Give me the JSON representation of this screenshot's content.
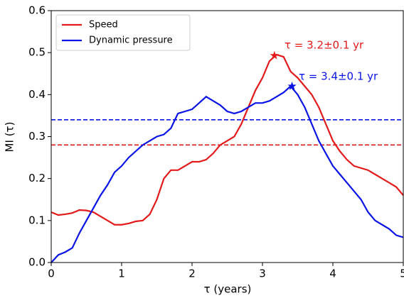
{
  "chart_data": {
    "type": "line",
    "xlabel": "τ (years)",
    "ylabel": "MI (τ)",
    "x": [
      0,
      0.1,
      0.2,
      0.3,
      0.4,
      0.5,
      0.6,
      0.7,
      0.8,
      0.9,
      1,
      1.1,
      1.2,
      1.3,
      1.4,
      1.5,
      1.6,
      1.7,
      1.8,
      1.9,
      2,
      2.1,
      2.2,
      2.3,
      2.4,
      2.5,
      2.6,
      2.7,
      2.8,
      2.9,
      3,
      3.1,
      3.2,
      3.3,
      3.4,
      3.5,
      3.6,
      3.7,
      3.8,
      3.9,
      4,
      4.1,
      4.2,
      4.3,
      4.4,
      4.5,
      4.6,
      4.7,
      4.8,
      4.9,
      5
    ],
    "series": [
      {
        "name": "Speed",
        "color": "#e31a1c",
        "values": [
          0.12,
          0.113,
          0.115,
          0.118,
          0.125,
          0.124,
          0.12,
          0.11,
          0.1,
          0.09,
          0.09,
          0.093,
          0.098,
          0.1,
          0.115,
          0.15,
          0.2,
          0.22,
          0.22,
          0.23,
          0.24,
          0.24,
          0.245,
          0.26,
          0.28,
          0.29,
          0.3,
          0.33,
          0.37,
          0.41,
          0.44,
          0.48,
          0.495,
          0.49,
          0.455,
          0.44,
          0.42,
          0.4,
          0.37,
          0.33,
          0.29,
          0.265,
          0.245,
          0.23,
          0.225,
          0.22,
          0.21,
          0.2,
          0.19,
          0.18,
          0.16
        ],
        "threshold": 0.28,
        "peak": {
          "x": 3.17,
          "y": 0.493
        },
        "annotation": "τ = 3.2±0.1 yr"
      },
      {
        "name": "Dynamic pressure",
        "color": "#0a14e6",
        "values": [
          0,
          0.018,
          0.025,
          0.035,
          0.07,
          0.1,
          0.13,
          0.16,
          0.185,
          0.215,
          0.23,
          0.25,
          0.265,
          0.28,
          0.29,
          0.3,
          0.305,
          0.32,
          0.355,
          0.36,
          0.365,
          0.38,
          0.395,
          0.385,
          0.375,
          0.36,
          0.355,
          0.36,
          0.37,
          0.38,
          0.38,
          0.385,
          0.395,
          0.405,
          0.42,
          0.4,
          0.37,
          0.33,
          0.29,
          0.26,
          0.23,
          0.21,
          0.19,
          0.17,
          0.15,
          0.12,
          0.1,
          0.09,
          0.08,
          0.065,
          0.06
        ],
        "threshold": 0.34,
        "peak": {
          "x": 3.42,
          "y": 0.42
        },
        "annotation": "τ = 3.4±0.1 yr"
      }
    ],
    "xlim": [
      0,
      5
    ],
    "xticks": [
      0,
      1,
      2,
      3,
      4,
      5
    ],
    "ylim": [
      0,
      0.6
    ],
    "yticks": [
      {
        "value": 0,
        "label": "0.0"
      },
      0.1,
      0.2,
      0.3,
      0.4,
      0.5,
      0.6
    ],
    "legend": "upper left",
    "grid": false
  }
}
